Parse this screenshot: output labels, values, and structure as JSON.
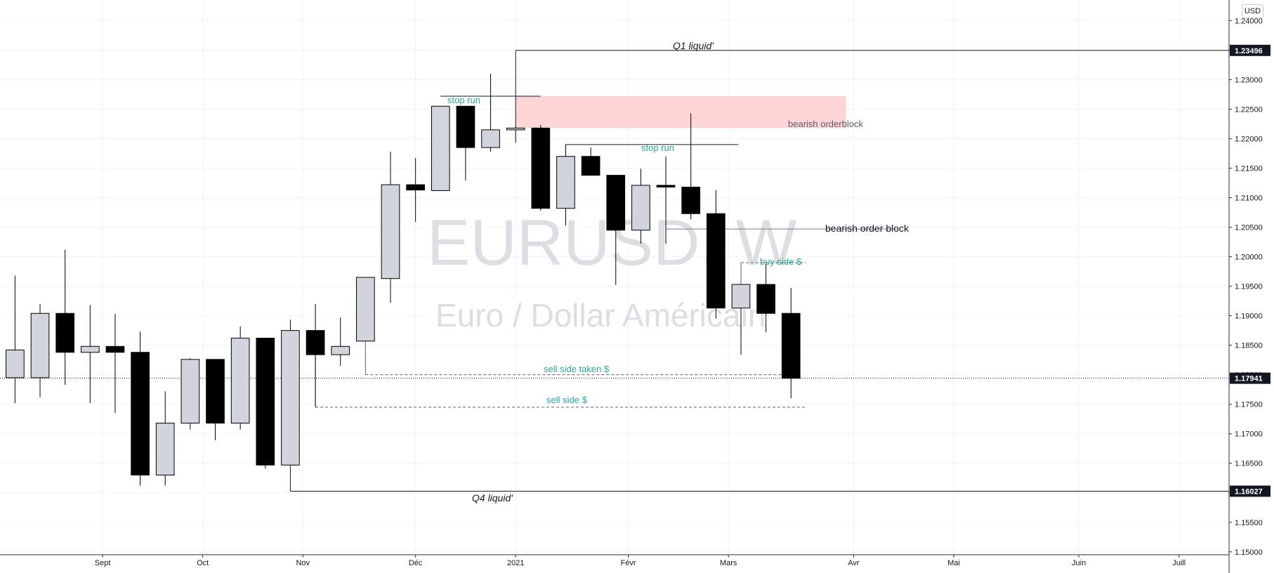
{
  "chart_data": {
    "type": "candlestick",
    "watermark": {
      "symbol": "EURUSD, W",
      "name": "Euro / Dollar Américain"
    },
    "currency": "USD",
    "y_axis": {
      "ticks": [
        "1.24000",
        "1.23500",
        "1.23000",
        "1.22500",
        "1.22000",
        "1.21500",
        "1.21000",
        "1.20500",
        "1.20000",
        "1.19500",
        "1.19000",
        "1.18500",
        "1.18000",
        "1.17500",
        "1.17000",
        "1.16500",
        "1.16000",
        "1.15500",
        "1.15000"
      ],
      "tick_values": [
        1.24,
        1.235,
        1.23,
        1.225,
        1.22,
        1.215,
        1.21,
        1.205,
        1.2,
        1.195,
        1.19,
        1.185,
        1.18,
        1.175,
        1.17,
        1.165,
        1.16,
        1.155,
        1.15
      ],
      "range": [
        1.1495,
        1.2435
      ]
    },
    "x_axis": {
      "labels": [
        {
          "text": "Sept",
          "week": 3.5
        },
        {
          "text": "Oct",
          "week": 7.5
        },
        {
          "text": "Nov",
          "week": 11.5
        },
        {
          "text": "Déc",
          "week": 16
        },
        {
          "text": "2021",
          "week": 20
        },
        {
          "text": "Févr",
          "week": 24.5
        },
        {
          "text": "Mars",
          "week": 28.5
        },
        {
          "text": "Avr",
          "week": 33.5
        },
        {
          "text": "Mai",
          "week": 37.5
        },
        {
          "text": "Juin",
          "week": 42.5
        },
        {
          "text": "Juill",
          "week": 46.5
        }
      ],
      "range": [
        -0.6,
        48.5
      ]
    },
    "candles": [
      {
        "o": 1.1795,
        "h": 1.1968,
        "l": 1.1752,
        "c": 1.1842
      },
      {
        "o": 1.1795,
        "h": 1.192,
        "l": 1.1762,
        "c": 1.1904
      },
      {
        "o": 1.1904,
        "h": 1.2012,
        "l": 1.1783,
        "c": 1.1838
      },
      {
        "o": 1.1838,
        "h": 1.1918,
        "l": 1.1752,
        "c": 1.1848
      },
      {
        "o": 1.1848,
        "h": 1.1903,
        "l": 1.1735,
        "c": 1.1838
      },
      {
        "o": 1.1838,
        "h": 1.1873,
        "l": 1.1612,
        "c": 1.163
      },
      {
        "o": 1.163,
        "h": 1.1772,
        "l": 1.1612,
        "c": 1.1718
      },
      {
        "o": 1.1718,
        "h": 1.1828,
        "l": 1.1707,
        "c": 1.1826
      },
      {
        "o": 1.1826,
        "h": 1.1826,
        "l": 1.1689,
        "c": 1.1718
      },
      {
        "o": 1.1718,
        "h": 1.1882,
        "l": 1.1707,
        "c": 1.1862
      },
      {
        "o": 1.1862,
        "h": 1.1862,
        "l": 1.1641,
        "c": 1.1647
      },
      {
        "o": 1.1647,
        "h": 1.1893,
        "l": 1.1647,
        "c": 1.1875
      },
      {
        "o": 1.1875,
        "h": 1.192,
        "l": 1.1745,
        "c": 1.1834
      },
      {
        "o": 1.1834,
        "h": 1.1897,
        "l": 1.1815,
        "c": 1.1848
      },
      {
        "o": 1.1857,
        "h": 1.1965,
        "l": 1.1857,
        "c": 1.1965
      },
      {
        "o": 1.1963,
        "h": 1.2178,
        "l": 1.1922,
        "c": 1.2122
      },
      {
        "o": 1.2122,
        "h": 1.2167,
        "l": 1.2059,
        "c": 1.2113
      },
      {
        "o": 1.2112,
        "h": 1.2255,
        "l": 1.2112,
        "c": 1.2255
      },
      {
        "o": 1.2255,
        "h": 1.2255,
        "l": 1.2129,
        "c": 1.2185
      },
      {
        "o": 1.2185,
        "h": 1.231,
        "l": 1.2178,
        "c": 1.2215
      },
      {
        "o": 1.2215,
        "h": 1.222,
        "l": 1.2193,
        "c": 1.2218
      },
      {
        "o": 1.2218,
        "h": 1.2223,
        "l": 1.2078,
        "c": 1.2082
      },
      {
        "o": 1.2082,
        "h": 1.219,
        "l": 1.2053,
        "c": 1.217
      },
      {
        "o": 1.217,
        "h": 1.2185,
        "l": 1.2137,
        "c": 1.2138
      },
      {
        "o": 1.2138,
        "h": 1.2138,
        "l": 1.1952,
        "c": 1.2045
      },
      {
        "o": 1.2045,
        "h": 1.2149,
        "l": 1.2022,
        "c": 1.2121
      },
      {
        "o": 1.2121,
        "h": 1.217,
        "l": 1.2022,
        "c": 1.2118
      },
      {
        "o": 1.2118,
        "h": 1.2243,
        "l": 1.2063,
        "c": 1.2073
      },
      {
        "o": 1.2073,
        "h": 1.2113,
        "l": 1.1895,
        "c": 1.1913
      },
      {
        "o": 1.1913,
        "h": 1.1953,
        "l": 1.1834,
        "c": 1.1953
      },
      {
        "o": 1.1953,
        "h": 1.199,
        "l": 1.1872,
        "c": 1.1904
      },
      {
        "o": 1.1904,
        "h": 1.1947,
        "l": 1.176,
        "c": 1.1794
      }
    ],
    "price_levels": [
      {
        "label": "1.23496",
        "value": 1.23496
      },
      {
        "label": "1.17941",
        "value": 1.17941
      },
      {
        "label": "1.16027",
        "value": 1.16027
      }
    ],
    "annotations": {
      "q1": "Q1 liquid'",
      "q4": "Q4 liquid'",
      "stop_run_1": "stop run",
      "stop_run_2": "stop run",
      "bearish_orderblock": "bearish orderblock",
      "bearish_order_block": "bearish order block",
      "buy_side": "buy side $",
      "sell_side_taken": "sell side taken $",
      "sell_side": "sell side $"
    },
    "colors": {
      "up_fill": "#d1d4dc",
      "down_fill": "#000000",
      "outline": "#000000",
      "accent_green": "#26a69a",
      "orderblock_zone": "#fcd5d4",
      "watermark": "#dcdee3",
      "grid": "#f0f3fa"
    }
  }
}
